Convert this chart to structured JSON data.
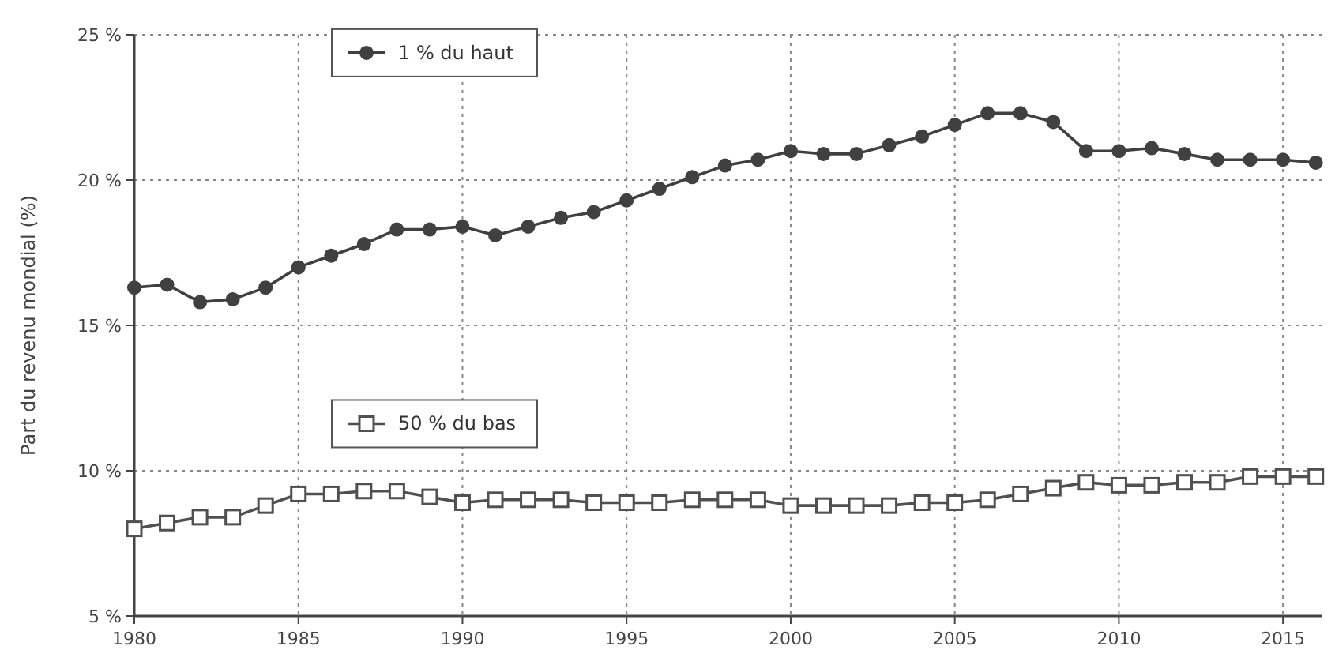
{
  "chart_data": {
    "type": "line",
    "ylabel": "Part du revenu mondial (%)",
    "x": [
      1980,
      1981,
      1982,
      1983,
      1984,
      1985,
      1986,
      1987,
      1988,
      1989,
      1990,
      1991,
      1992,
      1993,
      1994,
      1995,
      1996,
      1997,
      1998,
      1999,
      2000,
      2001,
      2002,
      2003,
      2004,
      2005,
      2006,
      2007,
      2008,
      2009,
      2010,
      2011,
      2012,
      2013,
      2014,
      2015,
      2016
    ],
    "series": [
      {
        "name": "1 % du haut",
        "color": "#404040",
        "marker": "circle",
        "values": [
          16.3,
          16.4,
          15.8,
          15.9,
          16.3,
          17.0,
          17.4,
          17.8,
          18.3,
          18.3,
          18.4,
          18.1,
          18.4,
          18.7,
          18.9,
          19.3,
          19.7,
          20.1,
          20.5,
          20.7,
          21.0,
          20.9,
          20.9,
          21.2,
          21.5,
          21.9,
          22.3,
          22.3,
          22.0,
          21.0,
          21.0,
          21.1,
          20.9,
          20.7,
          20.7,
          20.7,
          20.6
        ]
      },
      {
        "name": "50 % du bas",
        "color": "#505050",
        "marker": "square",
        "values": [
          8.0,
          8.2,
          8.4,
          8.4,
          8.8,
          9.2,
          9.2,
          9.3,
          9.3,
          9.1,
          8.9,
          9.0,
          9.0,
          9.0,
          8.9,
          8.9,
          8.9,
          9.0,
          9.0,
          9.0,
          8.8,
          8.8,
          8.8,
          8.8,
          8.9,
          8.9,
          9.0,
          9.2,
          9.4,
          9.6,
          9.5,
          9.5,
          9.6,
          9.6,
          9.8,
          9.8,
          9.8
        ]
      }
    ],
    "xlim": [
      1980,
      2016.2
    ],
    "xticks": [
      1980,
      1985,
      1990,
      1995,
      2000,
      2005,
      2010,
      2015
    ],
    "ylim": [
      5,
      25
    ],
    "yticks": [
      {
        "value": 5,
        "label": "5 %"
      },
      {
        "value": 10,
        "label": "10 %"
      },
      {
        "value": 15,
        "label": "15 %"
      },
      {
        "value": 20,
        "label": "20 %"
      },
      {
        "value": 25,
        "label": "25 %"
      }
    ],
    "grid": true,
    "legend": "left",
    "line_style": "solid"
  }
}
